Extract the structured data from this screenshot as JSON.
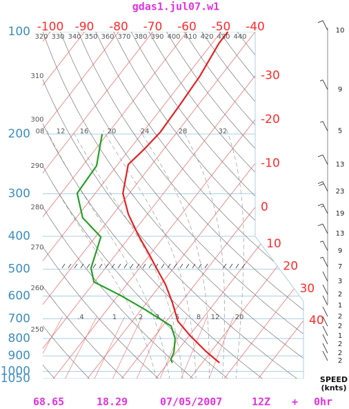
{
  "chart_data": {
    "type": "skewt",
    "title": "gdas1.jul07.w1",
    "yscale": "log",
    "ylim": [
      1050,
      100
    ],
    "yticks": [
      100,
      200,
      300,
      400,
      500,
      600,
      700,
      800,
      900,
      1000,
      1050
    ],
    "xticks": [
      -100,
      -90,
      -80,
      -70,
      -60,
      -50,
      -40,
      -30,
      -20,
      -10,
      0,
      10,
      20,
      30,
      40
    ],
    "dry_adiabats": [
      250,
      260,
      270,
      280,
      290,
      300,
      310,
      320,
      330,
      340,
      350,
      360,
      370,
      380,
      390,
      400,
      410,
      420,
      430,
      440
    ],
    "moist_adiabats": [
      {
        "value": 8,
        "label": "08"
      },
      12,
      16,
      20,
      24,
      28,
      32
    ],
    "mixing_ratios": [
      {
        "value": 0.4,
        "label": ".4"
      },
      1,
      2,
      3,
      5,
      8,
      12,
      20
    ],
    "series": [
      {
        "color": "#e81e1e",
        "pressure": [
          100,
          108,
          135,
          163,
          198,
          221,
          246,
          299,
          344,
          396,
          446,
          501,
          555,
          627,
          712,
          782,
          871,
          943
        ],
        "values": [
          -48,
          -48,
          -46.1,
          -45.4,
          -44.9,
          -45.7,
          -46.9,
          -41.9,
          -35.6,
          -28,
          -21.1,
          -14.5,
          -8.6,
          -2.5,
          3.4,
          10,
          18.3,
          25
        ]
      },
      {
        "color": "#22a022",
        "pressure": [
          200,
          248,
          299,
          353,
          402,
          496,
          545,
          599,
          657,
          735,
          800,
          879,
          921,
          943
        ],
        "values": [
          -61.5,
          -55.9,
          -55.3,
          -48.1,
          -38.4,
          -34.2,
          -30.2,
          -19,
          -9,
          2.5,
          6.5,
          9.3,
          10,
          11.2
        ]
      }
    ],
    "wind": {
      "pressure": [
        99,
        148,
        196,
        246,
        295,
        343,
        393,
        441,
        492,
        543,
        593,
        639,
        689,
        736,
        785,
        831,
        883,
        930
      ],
      "speed": [
        10,
        9,
        5,
        13,
        23,
        19,
        13,
        9,
        7,
        3,
        2,
        1,
        2,
        2,
        1,
        2,
        2,
        2
      ],
      "label": "SPEED",
      "units": "(knts)"
    },
    "footer": [
      "68.65",
      "18.29",
      "07/05/2007",
      "12Z",
      "+",
      "0hr"
    ]
  }
}
